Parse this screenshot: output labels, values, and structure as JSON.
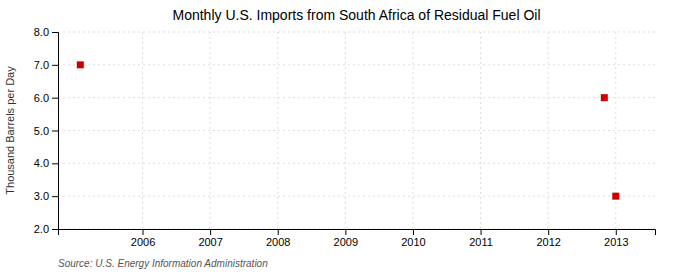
{
  "chart_data": {
    "type": "scatter",
    "title": "Monthly U.S. Imports from South Africa of Residual Fuel Oil",
    "ylabel": "Thousand Barrels per Day",
    "annotations": [
      "Source: U.S. Energy Information Administration"
    ],
    "x": [
      2005.08,
      2012.83,
      2013.0
    ],
    "values": [
      7.0,
      6.0,
      3.0
    ],
    "color": "#cc0000",
    "marker": "square",
    "xlim": [
      2004.75,
      2013.58
    ],
    "xticks": [
      2006,
      2007,
      2008,
      2009,
      2010,
      2011,
      2012,
      2013
    ],
    "ylim": [
      2.0,
      8.0
    ],
    "yticks": [
      {
        "value": 2.0,
        "label": "2.0"
      },
      {
        "value": 3.0,
        "label": "3.0"
      },
      {
        "value": 4.0,
        "label": "4.0"
      },
      {
        "value": 5.0,
        "label": "5.0"
      },
      {
        "value": 6.0,
        "label": "6.0"
      },
      {
        "value": 7.0,
        "label": "7.0"
      },
      {
        "value": 8.0,
        "label": "8.0"
      }
    ],
    "grid": true
  }
}
